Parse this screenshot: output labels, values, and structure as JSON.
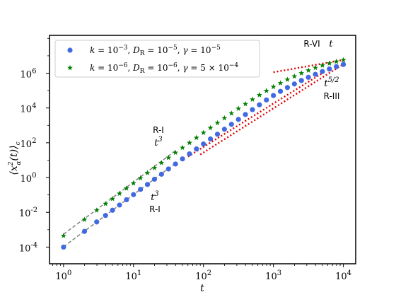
{
  "chart_data": {
    "type": "scatter",
    "xlabel": "t",
    "ylabel": "⟨x²α(t)⟩c",
    "x_scale": "log",
    "y_scale": "log",
    "xlim": [
      0.63,
      15000
    ],
    "ylim": [
      1.1e-05,
      150000000
    ],
    "x_ticks": [
      1,
      10,
      100,
      1000,
      10000
    ],
    "x_tick_labels": [
      [
        "10",
        "0"
      ],
      [
        "10",
        "1"
      ],
      [
        "10",
        "2"
      ],
      [
        "10",
        "3"
      ],
      [
        "10",
        "4"
      ]
    ],
    "y_ticks": [
      0.0001,
      0.01,
      1,
      100,
      10000,
      1000000
    ],
    "y_tick_labels": [
      [
        "10",
        "-4"
      ],
      [
        "10",
        "-2"
      ],
      [
        "10",
        "0"
      ],
      [
        "10",
        "2"
      ],
      [
        "10",
        "4"
      ],
      [
        "10",
        "6"
      ]
    ],
    "legend_position": "top-left",
    "series": [
      {
        "name": "k = 10⁻³, D_R = 10⁻⁵, γ = 10⁻⁵",
        "marker": "circle",
        "color": "#4169e1",
        "x": [
          1,
          1.995,
          2.979,
          3.981,
          5.012,
          6.31,
          7.943,
          10,
          12.59,
          15.85,
          19.95,
          25.12,
          31.62,
          39.81,
          50.12,
          63.1,
          79.43,
          100,
          125.9,
          158.5,
          199.5,
          251.2,
          316.2,
          398.1,
          501.2,
          631,
          794.3,
          1000,
          1259,
          1585,
          1995,
          2512,
          3162,
          3981,
          5012,
          6310,
          7943,
          10000
        ],
        "y": [
          0.0001,
          0.0008,
          0.0028,
          0.0066,
          0.0132,
          0.0263,
          0.053,
          0.104,
          0.208,
          0.4,
          0.8,
          1.55,
          3.1,
          6.0,
          11.8,
          23,
          44,
          85,
          165,
          310,
          600,
          1150,
          2200,
          4200,
          8000,
          15200,
          29000,
          52000,
          90000,
          150000,
          240000,
          380000,
          580000,
          860000,
          1250000,
          1750000,
          2400000,
          3200000
        ]
      },
      {
        "name": "k = 10⁻⁶, D_R = 10⁻⁶, γ = 5 × 10⁻⁴",
        "marker": "star",
        "color": "#008000",
        "x": [
          1,
          1.995,
          2.979,
          3.981,
          5.012,
          6.31,
          7.943,
          10,
          12.59,
          15.85,
          19.95,
          25.12,
          31.62,
          39.81,
          50.12,
          63.1,
          79.43,
          100,
          125.9,
          158.5,
          199.5,
          251.2,
          316.2,
          398.1,
          501.2,
          631,
          794.3,
          1000,
          1259,
          1585,
          1995,
          2512,
          3162,
          3981,
          5012,
          6310,
          7943,
          10000
        ],
        "y": [
          0.00045,
          0.0038,
          0.013,
          0.031,
          0.06,
          0.12,
          0.24,
          0.47,
          0.93,
          1.85,
          3.6,
          7.0,
          13.8,
          27,
          52,
          100,
          195,
          380,
          720,
          1380,
          2600,
          4900,
          9200,
          17000,
          31000,
          56000,
          98000,
          165000,
          270000,
          430000,
          660000,
          1000000,
          1450000,
          2050000,
          2800000,
          3700000,
          4700000,
          5800000
        ]
      }
    ],
    "fits": [
      {
        "x": [
          1,
          40
        ],
        "y": [
          0.000105,
          6.72
        ],
        "style": "dashed"
      },
      {
        "x": [
          1,
          40
        ],
        "y": [
          0.00055,
          35.2
        ],
        "style": "dashed"
      },
      {
        "x": [
          60,
          5000
        ],
        "y": [
          16,
          1000000
        ],
        "style": "dotted"
      },
      {
        "x": [
          90,
          10000
        ],
        "y": [
          21,
          3300000
        ],
        "style": "dotted"
      },
      {
        "x": [
          1000,
          10000
        ],
        "y": [
          1130000,
          5800000
        ],
        "style": "dotted"
      }
    ],
    "annotations": [
      {
        "region": "R-I",
        "law": [
          "t",
          "3"
        ]
      },
      {
        "region": "R-I",
        "law": [
          "t",
          "3"
        ]
      },
      {
        "region": "R-III",
        "law": [
          "t",
          "5/2"
        ]
      },
      {
        "region": "R-VI",
        "law": [
          "t",
          ""
        ]
      }
    ]
  }
}
